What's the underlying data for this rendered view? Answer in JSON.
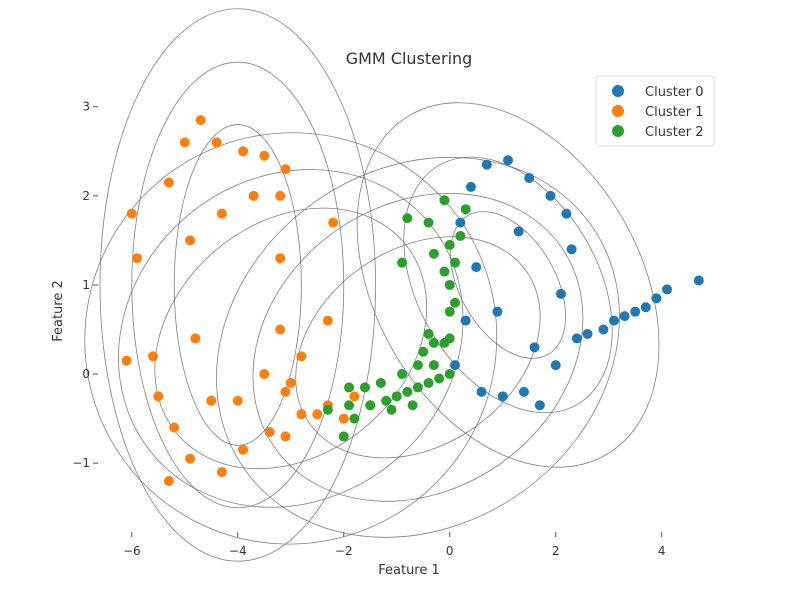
{
  "chart_data": {
    "type": "scatter",
    "title": "GMM Clustering",
    "xlabel": "Feature 1",
    "ylabel": "Feature 2",
    "xlim": [
      -6.6,
      5.1
    ],
    "ylim": [
      -1.75,
      3.3
    ],
    "xticks": [
      -6,
      -4,
      -2,
      0,
      2,
      4
    ],
    "yticks": [
      -1,
      0,
      1,
      2,
      3
    ],
    "xtick_labels": [
      "−6",
      "−4",
      "−2",
      "0",
      "2",
      "4"
    ],
    "ytick_labels": [
      "−1",
      "0",
      "1",
      "2",
      "3"
    ],
    "grid": false,
    "legend_position": "top-right",
    "series": [
      {
        "name": "Cluster 0",
        "color": "#1f77b4",
        "center": [
          1.1,
          1.0
        ],
        "points": [
          [
            4.7,
            1.05
          ],
          [
            4.1,
            0.95
          ],
          [
            3.9,
            0.85
          ],
          [
            3.7,
            0.75
          ],
          [
            3.5,
            0.7
          ],
          [
            3.3,
            0.65
          ],
          [
            3.1,
            0.6
          ],
          [
            2.9,
            0.5
          ],
          [
            2.6,
            0.45
          ],
          [
            2.4,
            0.4
          ],
          [
            1.1,
            2.4
          ],
          [
            0.7,
            2.35
          ],
          [
            1.5,
            2.2
          ],
          [
            1.9,
            2.0
          ],
          [
            2.2,
            1.8
          ],
          [
            2.3,
            1.4
          ],
          [
            2.1,
            0.9
          ],
          [
            0.4,
            2.1
          ],
          [
            0.2,
            1.7
          ],
          [
            0.6,
            -0.2
          ],
          [
            1.0,
            -0.25
          ],
          [
            1.4,
            -0.2
          ],
          [
            1.7,
            -0.35
          ],
          [
            2.0,
            0.1
          ],
          [
            0.1,
            0.1
          ],
          [
            0.3,
            0.6
          ],
          [
            0.5,
            1.2
          ],
          [
            1.3,
            1.6
          ],
          [
            0.9,
            0.7
          ],
          [
            1.6,
            0.3
          ]
        ]
      },
      {
        "name": "Cluster 1",
        "color": "#ff7f0e",
        "center": [
          -4.0,
          1.0
        ],
        "points": [
          [
            -4.7,
            2.85
          ],
          [
            -5.0,
            2.6
          ],
          [
            -4.4,
            2.6
          ],
          [
            -3.9,
            2.5
          ],
          [
            -3.5,
            2.45
          ],
          [
            -3.1,
            2.3
          ],
          [
            -5.3,
            2.15
          ],
          [
            -6.0,
            1.8
          ],
          [
            -5.9,
            1.3
          ],
          [
            -5.6,
            0.2
          ],
          [
            -6.1,
            0.15
          ],
          [
            -5.5,
            -0.25
          ],
          [
            -5.2,
            -0.6
          ],
          [
            -4.9,
            -0.95
          ],
          [
            -5.3,
            -1.2
          ],
          [
            -4.3,
            -1.1
          ],
          [
            -3.9,
            -0.85
          ],
          [
            -3.4,
            -0.65
          ],
          [
            -3.1,
            -0.7
          ],
          [
            -2.8,
            -0.45
          ],
          [
            -2.5,
            -0.45
          ],
          [
            -2.3,
            -0.35
          ],
          [
            -2.0,
            -0.5
          ],
          [
            -1.8,
            -0.25
          ],
          [
            -1.5,
            -0.35
          ],
          [
            -2.2,
            1.7
          ],
          [
            -2.3,
            0.6
          ],
          [
            -2.8,
            0.2
          ],
          [
            -3.0,
            -0.1
          ],
          [
            -3.2,
            1.3
          ],
          [
            -3.2,
            0.5
          ],
          [
            -4.8,
            0.4
          ],
          [
            -4.9,
            1.5
          ],
          [
            -4.3,
            1.8
          ],
          [
            -3.7,
            2.0
          ],
          [
            -3.5,
            0.0
          ],
          [
            -4.5,
            -0.3
          ],
          [
            -4.0,
            -0.3
          ],
          [
            -3.1,
            -0.2
          ],
          [
            -3.2,
            2.0
          ]
        ]
      },
      {
        "name": "Cluster 2",
        "color": "#2ca02c",
        "center": [
          -0.6,
          -0.1
        ],
        "points": [
          [
            -1.9,
            -0.35
          ],
          [
            -1.5,
            -0.35
          ],
          [
            -1.2,
            -0.3
          ],
          [
            -1.0,
            -0.25
          ],
          [
            -0.8,
            -0.2
          ],
          [
            -0.6,
            -0.15
          ],
          [
            -0.4,
            -0.1
          ],
          [
            -0.2,
            -0.05
          ],
          [
            -1.8,
            -0.5
          ],
          [
            -1.3,
            -0.1
          ],
          [
            -0.9,
            0.0
          ],
          [
            -0.6,
            0.1
          ],
          [
            -0.3,
            0.1
          ],
          [
            0.0,
            0.0
          ],
          [
            -0.7,
            -0.35
          ],
          [
            -1.6,
            -0.15
          ],
          [
            -1.1,
            -0.4
          ],
          [
            -0.5,
            0.25
          ],
          [
            -0.4,
            0.45
          ],
          [
            -0.3,
            0.35
          ],
          [
            -0.1,
            0.35
          ],
          [
            0.0,
            0.4
          ],
          [
            0.0,
            0.7
          ],
          [
            0.1,
            0.8
          ],
          [
            0.0,
            1.0
          ],
          [
            -0.1,
            1.15
          ],
          [
            0.1,
            1.25
          ],
          [
            0.0,
            1.45
          ],
          [
            0.2,
            1.55
          ],
          [
            -0.4,
            1.7
          ],
          [
            -0.1,
            1.95
          ],
          [
            0.3,
            1.85
          ],
          [
            -0.8,
            1.75
          ],
          [
            -0.9,
            1.25
          ],
          [
            -0.3,
            1.35
          ],
          [
            -2.0,
            -0.7
          ],
          [
            -1.9,
            -0.15
          ],
          [
            -2.3,
            -0.4
          ]
        ]
      }
    ],
    "ellipses": [
      {
        "cluster": "Cluster 1",
        "center": [
          -4.0,
          1.0
        ],
        "rx": [
          1.2,
          2.0,
          2.6
        ],
        "ry": [
          1.8,
          2.5,
          3.1
        ],
        "angle_deg": 0
      },
      {
        "cluster": "Cluster 0",
        "center": [
          1.1,
          1.0
        ],
        "rx": [
          0.9,
          1.7,
          2.5
        ],
        "ry": [
          0.9,
          1.55,
          2.2
        ],
        "angle_deg": 30
      },
      {
        "cluster": "Cluster 2",
        "center": [
          -0.6,
          0.3
        ],
        "rx": [
          2.5,
          3.3,
          4.0
        ],
        "ry": [
          1.1,
          1.6,
          2.0
        ],
        "angle_deg": 35
      },
      {
        "cluster": "Cluster 1",
        "center": [
          -3.0,
          0.4
        ],
        "rx": [
          2.8,
          3.4,
          3.9
        ],
        "ry": [
          1.3,
          1.8,
          2.3
        ],
        "angle_deg": 40
      }
    ]
  }
}
